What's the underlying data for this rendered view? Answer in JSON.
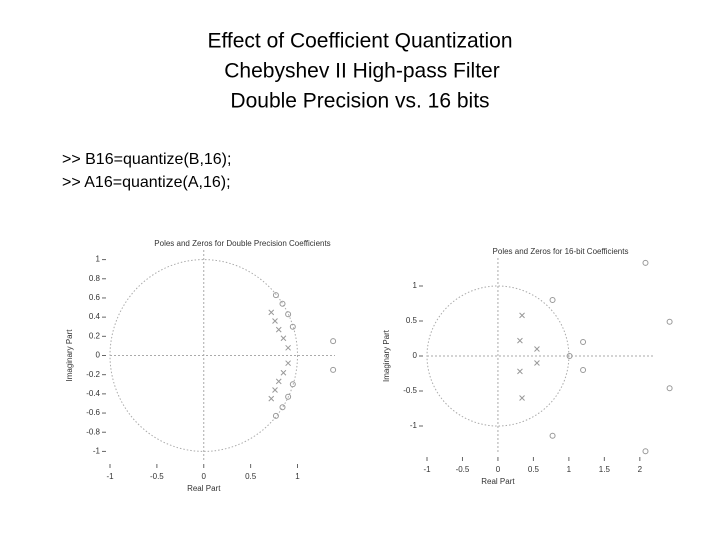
{
  "slide": {
    "title": [
      "Effect of Coefficient Quantization",
      "Chebyshev II High-pass Filter",
      "Double Precision vs. 16 bits"
    ],
    "code": [
      ">> B16=quantize(B,16);",
      ">> A16=quantize(A,16);"
    ]
  },
  "chart_data": [
    {
      "type": "scatter",
      "title": "Poles and Zeros for Double Precision Coefficients",
      "x_label": "Real Part",
      "y_label": "Imaginary Part",
      "xlim": [
        -1,
        1.4
      ],
      "ylim": [
        -1.1,
        1.1
      ],
      "xticks": [
        -1,
        -0.5,
        0,
        0.5,
        1
      ],
      "yticks": [
        -1,
        -0.8,
        -0.6,
        -0.4,
        -0.2,
        0,
        0.2,
        0.4,
        0.6,
        0.8,
        1
      ],
      "series": [
        {
          "marker": "o",
          "color": "#999999",
          "x": [
            0.95,
            0.9,
            0.84,
            0.77,
            0.95,
            0.9,
            0.84,
            0.77,
            1.38,
            1.38
          ],
          "values": [
            0.3,
            0.43,
            0.54,
            0.63,
            -0.3,
            -0.43,
            -0.54,
            -0.63,
            0.15,
            -0.15
          ]
        },
        {
          "marker": "x",
          "color": "#999999",
          "x": [
            0.72,
            0.76,
            0.8,
            0.85,
            0.9,
            0.72,
            0.76,
            0.8,
            0.85,
            0.9
          ],
          "values": [
            0.45,
            0.36,
            0.27,
            0.18,
            0.08,
            -0.45,
            -0.36,
            -0.27,
            -0.18,
            -0.08
          ]
        }
      ]
    },
    {
      "type": "scatter",
      "title": "Poles and Zeros for 16-bit Coefficients",
      "x_label": "Real Part",
      "y_label": "Imaginary Part",
      "xlim": [
        -1,
        2.2
      ],
      "ylim": [
        -1.4,
        1.4
      ],
      "xticks": [
        -1,
        -0.5,
        0,
        0.5,
        1,
        1.5,
        2
      ],
      "yticks": [
        -1,
        -0.5,
        0,
        0.5,
        1
      ],
      "series": [
        {
          "marker": "o",
          "color": "#999999",
          "x": [
            2.08,
            2.08,
            2.42,
            2.42,
            1.01,
            0.77,
            0.77,
            1.2,
            1.2
          ],
          "values": [
            1.33,
            -1.36,
            0.49,
            -0.46,
            0,
            0.8,
            -1.14,
            0.2,
            -0.2
          ]
        },
        {
          "marker": "x",
          "color": "#999999",
          "x": [
            0.31,
            0.31,
            0.34,
            0.34,
            0.55,
            0.55
          ],
          "values": [
            0.22,
            -0.22,
            0.58,
            -0.6,
            0.1,
            -0.1
          ]
        }
      ]
    }
  ]
}
